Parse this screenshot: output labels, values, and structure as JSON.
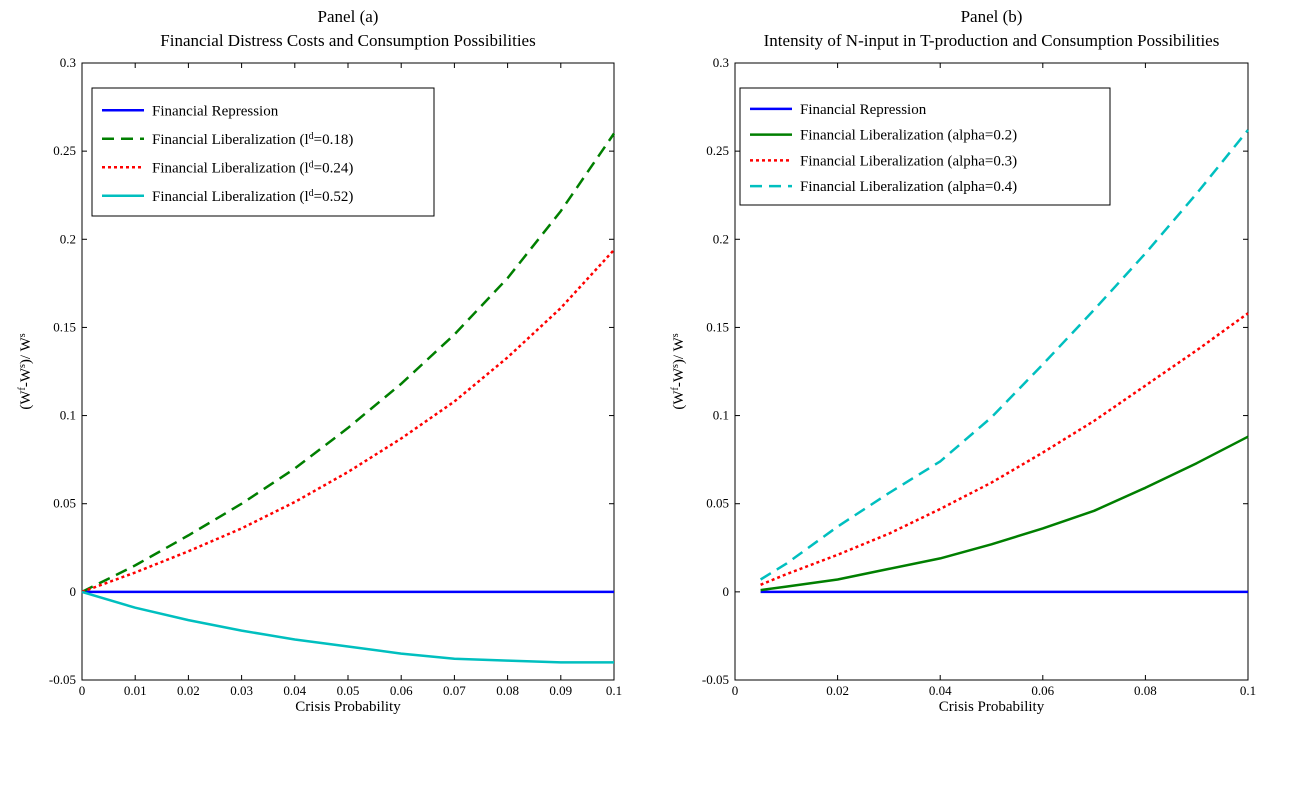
{
  "chart_data": [
    {
      "type": "line",
      "title_line1": "Panel (a)",
      "title_line2": "Financial Distress Costs and Consumption Possibilities",
      "xlabel": "Crisis Probability",
      "ylabel": "(W^f - W^s) / W^s",
      "xlim": [
        0,
        0.1
      ],
      "ylim": [
        -0.05,
        0.3
      ],
      "xticks": [
        "0",
        "0.01",
        "0.02",
        "0.03",
        "0.04",
        "0.05",
        "0.06",
        "0.07",
        "0.08",
        "0.09",
        "0.1"
      ],
      "yticks": [
        "-0.05",
        "0",
        "0.05",
        "0.1",
        "0.15",
        "0.2",
        "0.25",
        "0.3"
      ],
      "grid": false,
      "legend_position": "top-left",
      "x": [
        0.0,
        0.01,
        0.02,
        0.03,
        0.04,
        0.05,
        0.06,
        0.07,
        0.08,
        0.09,
        0.1
      ],
      "series": [
        {
          "name": "Financial Repression",
          "legend_prefix": "Financial Repression",
          "legend_sup": "",
          "legend_suffix": "",
          "color": "#0000FF",
          "dash": "solid",
          "values": [
            0,
            0,
            0,
            0,
            0,
            0,
            0,
            0,
            0,
            0,
            0
          ]
        },
        {
          "name": "Financial Liberalization (ld=0.18)",
          "legend_prefix": "Financial Liberalization (l",
          "legend_sup": "d",
          "legend_suffix": "=0.18)",
          "color": "#007F00",
          "dash": "dashed",
          "values": [
            0.0,
            0.015,
            0.032,
            0.05,
            0.07,
            0.093,
            0.118,
            0.146,
            0.178,
            0.216,
            0.26
          ]
        },
        {
          "name": "Financial Liberalization (ld=0.24)",
          "legend_prefix": "Financial Liberalization (l",
          "legend_sup": "d",
          "legend_suffix": "=0.24)",
          "color": "#FF0000",
          "dash": "dotted",
          "values": [
            0.0,
            0.011,
            0.023,
            0.036,
            0.051,
            0.068,
            0.087,
            0.108,
            0.133,
            0.161,
            0.194
          ]
        },
        {
          "name": "Financial Liberalization (ld=0.52)",
          "legend_prefix": "Financial Liberalization (l",
          "legend_sup": "d",
          "legend_suffix": "=0.52)",
          "color": "#00BFBF",
          "dash": "solid",
          "values": [
            0.0,
            -0.009,
            -0.016,
            -0.022,
            -0.027,
            -0.031,
            -0.035,
            -0.038,
            -0.039,
            -0.04,
            -0.04
          ]
        }
      ]
    },
    {
      "type": "line",
      "title_line1": "Panel (b)",
      "title_line2": "Intensity of N-input in T-production and Consumption Possibilities",
      "xlabel": "Crisis Probability",
      "ylabel": "(W^f - W^s) / W^s",
      "xlim": [
        0,
        0.1
      ],
      "ylim": [
        -0.05,
        0.3
      ],
      "xticks": [
        "0",
        "0.02",
        "0.04",
        "0.06",
        "0.08",
        "0.1"
      ],
      "yticks": [
        "-0.05",
        "0",
        "0.05",
        "0.1",
        "0.15",
        "0.2",
        "0.25",
        "0.3"
      ],
      "grid": false,
      "legend_position": "top-left",
      "x": [
        0.005,
        0.01,
        0.02,
        0.03,
        0.04,
        0.05,
        0.06,
        0.07,
        0.08,
        0.09,
        0.1
      ],
      "series": [
        {
          "name": "Financial Repression",
          "legend_prefix": "Financial Repression",
          "legend_sup": "",
          "legend_suffix": "",
          "color": "#0000FF",
          "dash": "solid",
          "values": [
            0,
            0,
            0,
            0,
            0,
            0,
            0,
            0,
            0,
            0,
            0
          ]
        },
        {
          "name": "Financial Liberalization (alpha=0.2)",
          "legend_prefix": "Financial Liberalization (alpha=0.2)",
          "legend_sup": "",
          "legend_suffix": "",
          "color": "#007F00",
          "dash": "solid",
          "values": [
            0.001,
            0.003,
            0.007,
            0.013,
            0.019,
            0.027,
            0.036,
            0.046,
            0.059,
            0.073,
            0.088
          ]
        },
        {
          "name": "Financial Liberalization (alpha=0.3)",
          "legend_prefix": "Financial Liberalization (alpha=0.3)",
          "legend_sup": "",
          "legend_suffix": "",
          "color": "#FF0000",
          "dash": "dotted",
          "values": [
            0.004,
            0.01,
            0.021,
            0.033,
            0.047,
            0.062,
            0.079,
            0.097,
            0.117,
            0.137,
            0.158
          ]
        },
        {
          "name": "Financial Liberalization (alpha=0.4)",
          "legend_prefix": "Financial Liberalization (alpha=0.4)",
          "legend_sup": "",
          "legend_suffix": "",
          "color": "#00BFBF",
          "dash": "dashed",
          "values": [
            0.007,
            0.016,
            0.037,
            0.056,
            0.074,
            0.099,
            0.129,
            0.16,
            0.192,
            0.226,
            0.262
          ]
        }
      ]
    }
  ]
}
